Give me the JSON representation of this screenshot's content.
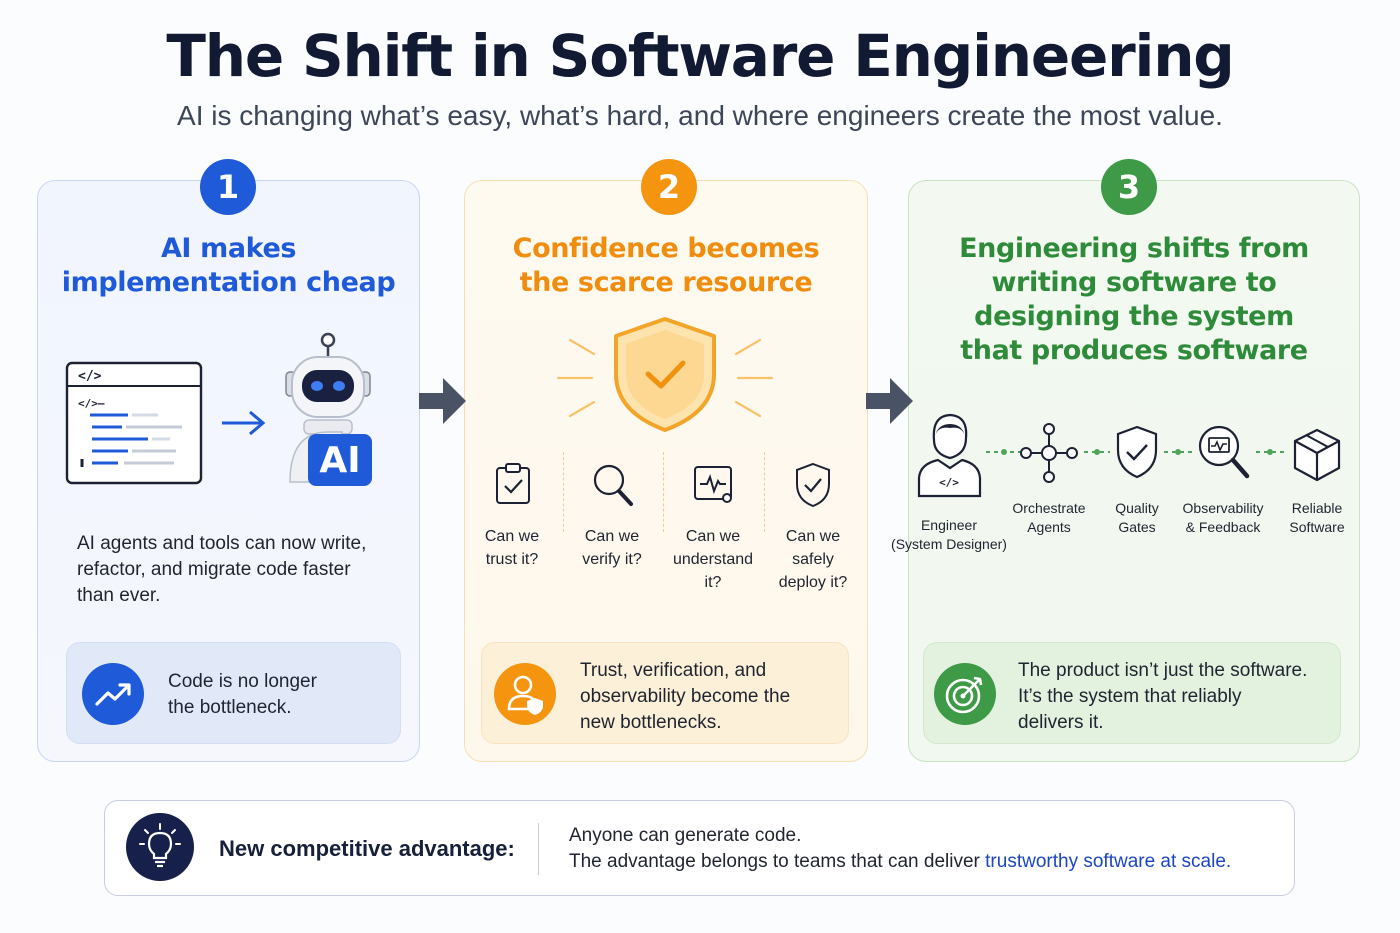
{
  "header": {
    "title": "The Shift in Software Engineering",
    "subtitle": "AI is changing what’s easy, what’s hard, and where engineers create the most value."
  },
  "colors": {
    "blue": "#1f5ad8",
    "orange": "#f5940f",
    "green": "#3e9a47",
    "navy": "#16204a"
  },
  "cards": [
    {
      "number": "1",
      "heading_lines": [
        "AI makes",
        "implementation cheap"
      ],
      "ai_badge": "AI",
      "body_lines": [
        "AI agents and tools can now write,",
        "refactor, and migrate code faster",
        "than ever."
      ],
      "callout_lines": [
        "Code is no longer",
        "the bottleneck."
      ],
      "callout_icon": "trending-up-icon"
    },
    {
      "number": "2",
      "heading_lines": [
        "Confidence becomes",
        "the scarce resource"
      ],
      "center_icon": "shield-check-icon",
      "questions": [
        {
          "icon": "clipboard-check-icon",
          "lines": [
            "Can we",
            "trust it?"
          ]
        },
        {
          "icon": "magnifier-icon",
          "lines": [
            "Can we",
            "verify it?"
          ]
        },
        {
          "icon": "monitor-pulse-icon",
          "lines": [
            "Can we",
            "understand",
            "it?"
          ]
        },
        {
          "icon": "shield-check-small-icon",
          "lines": [
            "Can we",
            "safely",
            "deploy it?"
          ]
        }
      ],
      "callout_lines": [
        "Trust, verification, and",
        "observability become the",
        "new bottlenecks."
      ],
      "callout_icon": "user-shield-icon"
    },
    {
      "number": "3",
      "heading_lines": [
        "Engineering shifts from",
        "writing software to",
        "designing the system",
        "that produces software"
      ],
      "flow": [
        {
          "icon": "engineer-icon",
          "lines": [
            "Engineer",
            "(System Designer)"
          ]
        },
        {
          "icon": "orchestrate-icon",
          "lines": [
            "Orchestrate",
            "Agents"
          ]
        },
        {
          "icon": "quality-shield-icon",
          "lines": [
            "Quality",
            "Gates"
          ]
        },
        {
          "icon": "observability-icon",
          "lines": [
            "Observability",
            "& Feedback"
          ]
        },
        {
          "icon": "box-icon",
          "lines": [
            "Reliable",
            "Software"
          ]
        }
      ],
      "callout_lines": [
        "The product isn’t just the software.",
        "It’s the system that reliably",
        "delivers it."
      ],
      "callout_icon": "target-icon"
    }
  ],
  "footer": {
    "label": "New competitive advantage:",
    "line1": "Anyone can generate code.",
    "line2_prefix": "The advantage belongs to teams that can deliver ",
    "line2_highlight": "trustworthy software at scale."
  }
}
